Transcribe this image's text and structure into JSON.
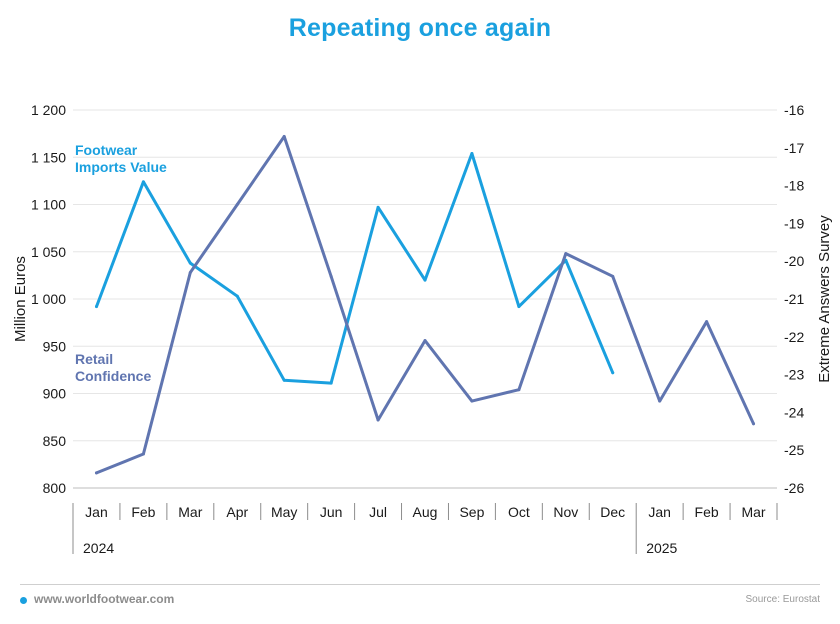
{
  "title": "Repeating once again",
  "footer": {
    "site": "www.worldfootwear.com",
    "source": "Source: Eurostat"
  },
  "colors": {
    "title": "#1aa0df",
    "footwear": "#1aa0df",
    "retail": "#6075b0",
    "grid": "#e6e6e6",
    "axis_text": "#1a1a1a"
  },
  "chart_data": {
    "type": "line",
    "categories": [
      "Jan",
      "Feb",
      "Mar",
      "Apr",
      "May",
      "Jun",
      "Jul",
      "Aug",
      "Sep",
      "Oct",
      "Nov",
      "Dec",
      "Jan",
      "Feb",
      "Mar"
    ],
    "year_labels": [
      {
        "label": "2024",
        "start_index": 0
      },
      {
        "label": "2025",
        "start_index": 12
      }
    ],
    "ylabel_left": "Million Euros",
    "ylabel_right": "Extreme Answers Survey",
    "ylim_left": [
      800,
      1200
    ],
    "yticks_left": [
      "800",
      "850",
      "900",
      "950",
      "1 000",
      "1 050",
      "1 100",
      "1 150",
      "1 200"
    ],
    "ylim_right": [
      -26,
      -16
    ],
    "yticks_right": [
      "-26",
      "-25",
      "-24",
      "-23",
      "-22",
      "-21",
      "-20",
      "-19",
      "-18",
      "-17",
      "-16"
    ],
    "grid": true,
    "series": [
      {
        "name": "Footwear Imports Value",
        "label_lines": [
          "Footwear",
          "Imports Value"
        ],
        "axis": "left",
        "color": "#1aa0df",
        "values": [
          992,
          1124,
          1038,
          1003,
          914,
          911,
          1097,
          1020,
          1154,
          992,
          1041,
          922,
          null,
          null,
          null
        ]
      },
      {
        "name": "Retail Confidence",
        "label_lines": [
          "Retail",
          "Confidence"
        ],
        "axis": "right",
        "color": "#6075b0",
        "values": [
          -25.6,
          -25.1,
          -20.3,
          -18.5,
          -16.7,
          -20.4,
          -24.2,
          -22.1,
          -23.7,
          -23.4,
          -19.8,
          -20.4,
          -23.7,
          -21.6,
          -24.3
        ]
      }
    ]
  }
}
